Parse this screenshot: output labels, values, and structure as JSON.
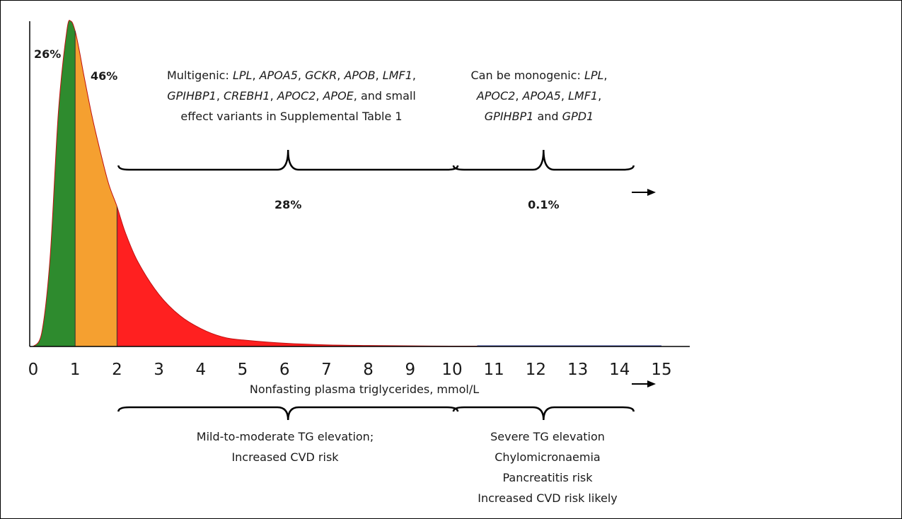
{
  "chart_data": {
    "type": "area",
    "xlabel": "Nonfasting plasma triglycerides, mmol/L",
    "xlim": [
      0,
      15
    ],
    "x_ticks": [
      "0",
      "1",
      "2",
      "3",
      "4",
      "5",
      "6",
      "7",
      "8",
      "9",
      "10",
      "11",
      "12",
      "13",
      "14",
      "15"
    ],
    "curve": {
      "x": [
        0,
        0.2,
        0.4,
        0.6,
        0.8,
        0.9,
        1.0,
        1.1,
        1.2,
        1.4,
        1.6,
        1.8,
        2.0,
        2.2,
        2.5,
        3.0,
        3.5,
        4.0,
        4.5,
        5.0,
        6.0,
        7.0,
        8.0,
        9.0,
        10.0,
        11.0,
        12.0,
        13.0,
        14.0,
        15.0
      ],
      "y": [
        0,
        0.04,
        0.27,
        0.72,
        0.97,
        1.0,
        0.97,
        0.91,
        0.84,
        0.71,
        0.6,
        0.5,
        0.43,
        0.35,
        0.26,
        0.16,
        0.095,
        0.055,
        0.03,
        0.02,
        0.01,
        0.005,
        0.003,
        0.002,
        0.001,
        0.001,
        0.001,
        0.001,
        0.001,
        0.0005
      ]
    },
    "segments": [
      {
        "from": 0,
        "to": 1,
        "color": "#2e8b2e",
        "label": "26%"
      },
      {
        "from": 1,
        "to": 2,
        "color": "#f5a030",
        "label": "46%"
      },
      {
        "from": 2,
        "to": 15,
        "color": "#ff2020",
        "label": ""
      }
    ],
    "upper_brackets": [
      {
        "from": 2,
        "to": 10,
        "label": "28%",
        "lines": [
          [
            {
              "t": "Multigenic: ",
              "i": false
            },
            {
              "t": "LPL",
              "i": true
            },
            {
              "t": ", ",
              "i": false
            },
            {
              "t": "APOA5",
              "i": true
            },
            {
              "t": ", ",
              "i": false
            },
            {
              "t": "GCKR",
              "i": true
            },
            {
              "t": ", ",
              "i": false
            },
            {
              "t": "APOB",
              "i": true
            },
            {
              "t": ", ",
              "i": false
            },
            {
              "t": "LMF1",
              "i": true
            },
            {
              "t": ",",
              "i": false
            }
          ],
          [
            {
              "t": "GPIHBP1",
              "i": true
            },
            {
              "t": ", ",
              "i": false
            },
            {
              "t": "CREBH1",
              "i": true
            },
            {
              "t": ", ",
              "i": false
            },
            {
              "t": "APOC2",
              "i": true
            },
            {
              "t": ", ",
              "i": false
            },
            {
              "t": "APOE",
              "i": true
            },
            {
              "t": ", and small",
              "i": false
            }
          ],
          [
            {
              "t": "effect variants in Supplemental Table 1",
              "i": false
            }
          ]
        ]
      },
      {
        "from": 10,
        "to": 14.2,
        "label": "0.1%",
        "lines": [
          [
            {
              "t": "Can be monogenic: ",
              "i": false
            },
            {
              "t": "LPL",
              "i": true
            },
            {
              "t": ",",
              "i": false
            }
          ],
          [
            {
              "t": "APOC2",
              "i": true
            },
            {
              "t": ", ",
              "i": false
            },
            {
              "t": "APOA5",
              "i": true
            },
            {
              "t": ", ",
              "i": false
            },
            {
              "t": "LMF1",
              "i": true
            },
            {
              "t": ",",
              "i": false
            }
          ],
          [
            {
              "t": "GPIHBP1",
              "i": true
            },
            {
              "t": " and ",
              "i": false
            },
            {
              "t": "GPD1",
              "i": true
            }
          ]
        ]
      }
    ],
    "lower_brackets": [
      {
        "from": 2,
        "to": 10,
        "lines": [
          "Mild-to-moderate TG elevation;",
          "Increased CVD risk"
        ]
      },
      {
        "from": 10,
        "to": 14.2,
        "lines": [
          "Severe TG elevation",
          "Chylomicronaemia",
          "Pancreatitis risk",
          "Increased CVD risk likely"
        ]
      }
    ]
  }
}
